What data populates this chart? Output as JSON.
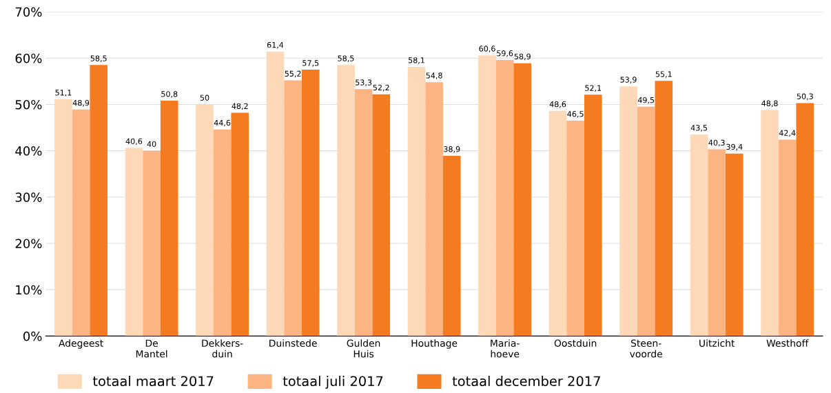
{
  "chart_data": {
    "type": "bar",
    "categories": [
      "Adegeest",
      "De\nMantel",
      "Dekkers-\nduin",
      "Duinstede",
      "Gulden\nHuis",
      "Houthage",
      "Maria-\nhoeve",
      "Oostduin",
      "Steen-\nvoorde",
      "Uitzicht",
      "Westhoff"
    ],
    "series": [
      {
        "name": "totaal maart 2017",
        "color": "#fdd9b8",
        "values": [
          51.1,
          40.6,
          50,
          61.4,
          58.5,
          58.1,
          60.6,
          48.6,
          53.9,
          43.5,
          48.8
        ],
        "value_labels": [
          "51,1",
          "40,6",
          "50",
          "61,4",
          "58,5",
          "58,1",
          "60,6",
          "48,6",
          "53,9",
          "43,5",
          "48,8"
        ]
      },
      {
        "name": "totaal juli 2017",
        "color": "#fbb482",
        "values": [
          48.9,
          40,
          44.6,
          55.2,
          53.3,
          54.8,
          59.6,
          46.5,
          49.5,
          40.3,
          42.4
        ],
        "value_labels": [
          "48,9",
          "40",
          "44,6",
          "55,2",
          "53,3",
          "54,8",
          "59,6",
          "46,5",
          "49,5",
          "40,3",
          "42,4"
        ]
      },
      {
        "name": "totaal december 2017",
        "color": "#f47b20",
        "values": [
          58.5,
          50.8,
          48.2,
          57.5,
          52.2,
          38.9,
          58.9,
          52.1,
          55.1,
          39.4,
          50.3
        ],
        "value_labels": [
          "58,5",
          "50,8",
          "48,2",
          "57,5",
          "52,2",
          "38,9",
          "58,9",
          "52,1",
          "55,1",
          "39,4",
          "50,3"
        ]
      }
    ],
    "ylim": [
      0,
      70
    ],
    "yticks": [
      {
        "value": 0,
        "label": "0%"
      },
      {
        "value": 10,
        "label": "10%"
      },
      {
        "value": 20,
        "label": "20%"
      },
      {
        "value": 30,
        "label": "30%"
      },
      {
        "value": 40,
        "label": "40%"
      },
      {
        "value": 50,
        "label": "50%"
      },
      {
        "value": 60,
        "label": "60%"
      },
      {
        "value": 70,
        "label": "70%"
      }
    ],
    "grid": "y",
    "legend": "bottom"
  }
}
